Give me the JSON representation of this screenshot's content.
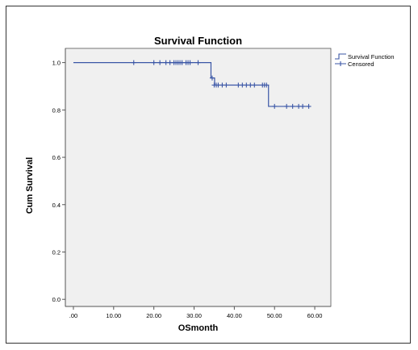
{
  "chart_data": {
    "type": "line",
    "title": "Survival Function",
    "xlabel": "OSmonth",
    "ylabel": "Cum Survival",
    "xlim": [
      -2,
      64
    ],
    "ylim": [
      -0.03,
      1.06
    ],
    "xticks": [
      0,
      10,
      20,
      30,
      40,
      50,
      60
    ],
    "xtick_labels": [
      ".00",
      "10.00",
      "20.00",
      "30.00",
      "40.00",
      "50.00",
      "60.00"
    ],
    "yticks": [
      0.0,
      0.2,
      0.4,
      0.6,
      0.8,
      1.0
    ],
    "ytick_labels": [
      "0.0",
      "0.2",
      "0.4",
      "0.6",
      "0.8",
      "1.0"
    ],
    "grid": false,
    "legend_position": "top-right",
    "colors": {
      "series": "#3a56a6",
      "plot_background": "#f0f0f0",
      "axis": "#555555"
    },
    "series": [
      {
        "name": "Survival Function",
        "kind": "step",
        "x": [
          0,
          33.5,
          34.2,
          35.1,
          48.5,
          58.5
        ],
        "y": [
          1.0,
          1.0,
          0.935,
          0.905,
          0.815,
          0.815
        ]
      },
      {
        "name": "Censored",
        "kind": "marker",
        "x": [
          15,
          20,
          21.5,
          23,
          24,
          25,
          25.5,
          26,
          26.5,
          27,
          28,
          28.5,
          29,
          31,
          34.5,
          35,
          35.5,
          36,
          37,
          38,
          41,
          42,
          43,
          44,
          45,
          47,
          47.5,
          48,
          50,
          53,
          54.5,
          56,
          57,
          58.5
        ],
        "y": [
          1.0,
          1.0,
          1.0,
          1.0,
          1.0,
          1.0,
          1.0,
          1.0,
          1.0,
          1.0,
          1.0,
          1.0,
          1.0,
          1.0,
          0.935,
          0.905,
          0.905,
          0.905,
          0.905,
          0.905,
          0.905,
          0.905,
          0.905,
          0.905,
          0.905,
          0.905,
          0.905,
          0.905,
          0.815,
          0.815,
          0.815,
          0.815,
          0.815,
          0.815
        ]
      }
    ]
  }
}
